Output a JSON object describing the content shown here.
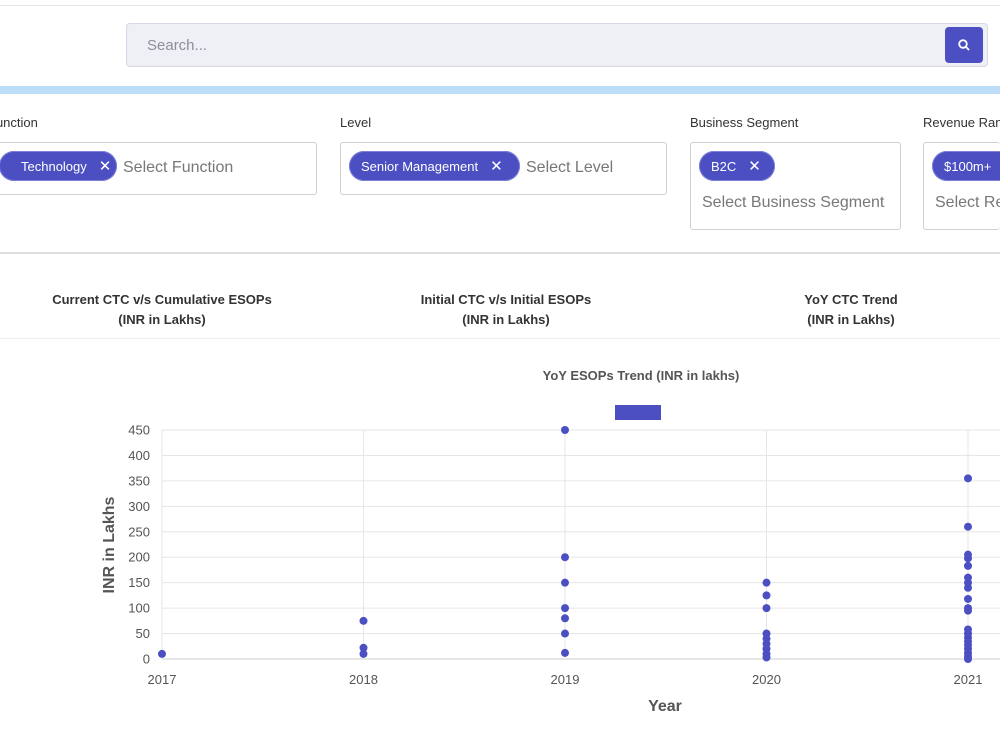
{
  "search": {
    "placeholder": "Search..."
  },
  "filters": [
    {
      "label": "Function",
      "chip": "Technology",
      "placeholder": "Select Function"
    },
    {
      "label": "Level",
      "chip": "Senior Management",
      "placeholder": "Select Level"
    },
    {
      "label": "Business Segment",
      "chip": "B2C",
      "placeholder": "Select Business Segment"
    },
    {
      "label": "Revenue Range",
      "chip": "$100m+",
      "placeholder": "Select Revenue Range"
    }
  ],
  "tabs": [
    {
      "line1": "Current CTC v/s Cumulative ESOPs",
      "line2": "(INR in Lakhs)"
    },
    {
      "line1": "Initial CTC v/s Initial ESOPs",
      "line2": "(INR in Lakhs)"
    },
    {
      "line1": "YoY CTC Trend",
      "line2": "(INR in Lakhs)"
    }
  ],
  "colors": {
    "accent": "#4b4fc1",
    "band": "#bcdcf8"
  },
  "chart_data": {
    "type": "scatter",
    "title": "YoY ESOPs Trend (INR in lakhs)",
    "xlabel": "Year",
    "ylabel": "INR in Lakhs",
    "categories": [
      "2017",
      "2018",
      "2019",
      "2020",
      "2021"
    ],
    "yticks": [
      0,
      50,
      100,
      150,
      200,
      250,
      300,
      350,
      400,
      450
    ],
    "ylim": [
      0,
      450
    ],
    "grid": true,
    "legend": "top",
    "color": "#4b4fc1",
    "points": [
      {
        "x": "2017",
        "y": 10
      },
      {
        "x": "2018",
        "y": 75
      },
      {
        "x": "2018",
        "y": 22
      },
      {
        "x": "2018",
        "y": 10
      },
      {
        "x": "2019",
        "y": 450
      },
      {
        "x": "2019",
        "y": 200
      },
      {
        "x": "2019",
        "y": 150
      },
      {
        "x": "2019",
        "y": 100
      },
      {
        "x": "2019",
        "y": 80
      },
      {
        "x": "2019",
        "y": 50
      },
      {
        "x": "2019",
        "y": 12
      },
      {
        "x": "2020",
        "y": 150
      },
      {
        "x": "2020",
        "y": 125
      },
      {
        "x": "2020",
        "y": 100
      },
      {
        "x": "2020",
        "y": 50
      },
      {
        "x": "2020",
        "y": 40
      },
      {
        "x": "2020",
        "y": 30
      },
      {
        "x": "2020",
        "y": 20
      },
      {
        "x": "2020",
        "y": 10
      },
      {
        "x": "2020",
        "y": 3
      },
      {
        "x": "2021",
        "y": 355
      },
      {
        "x": "2021",
        "y": 260
      },
      {
        "x": "2021",
        "y": 205
      },
      {
        "x": "2021",
        "y": 198
      },
      {
        "x": "2021",
        "y": 183
      },
      {
        "x": "2021",
        "y": 160
      },
      {
        "x": "2021",
        "y": 150
      },
      {
        "x": "2021",
        "y": 140
      },
      {
        "x": "2021",
        "y": 118
      },
      {
        "x": "2021",
        "y": 100
      },
      {
        "x": "2021",
        "y": 95
      },
      {
        "x": "2021",
        "y": 58
      },
      {
        "x": "2021",
        "y": 50
      },
      {
        "x": "2021",
        "y": 42
      },
      {
        "x": "2021",
        "y": 35
      },
      {
        "x": "2021",
        "y": 28
      },
      {
        "x": "2021",
        "y": 20
      },
      {
        "x": "2021",
        "y": 12
      },
      {
        "x": "2021",
        "y": 5
      },
      {
        "x": "2021",
        "y": 0
      }
    ]
  }
}
